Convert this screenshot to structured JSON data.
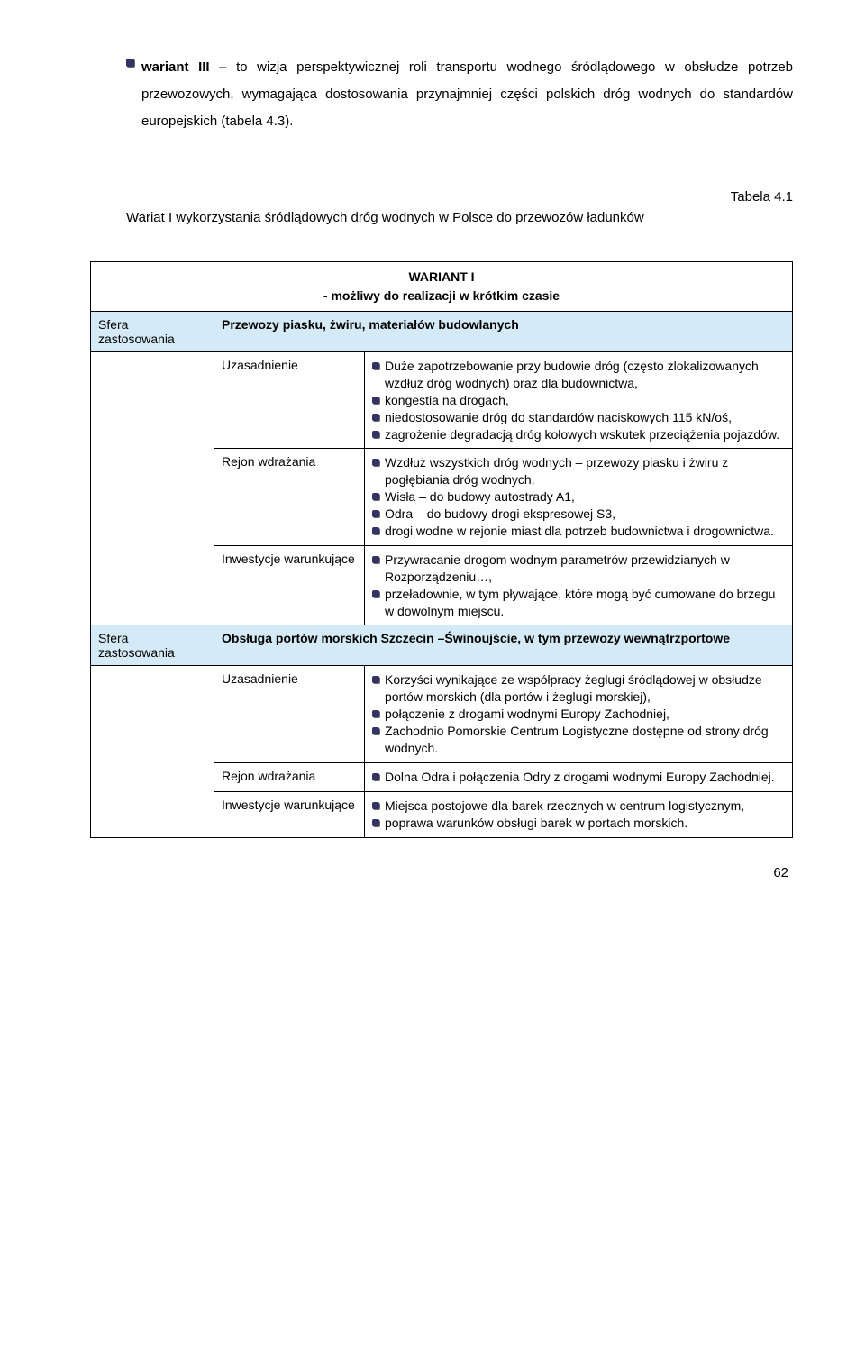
{
  "intro": {
    "text": "<b>wariant III</b> – to wizja perspektywicznej roli transportu wodnego śródlądowego w obsłudze potrzeb przewozowych, wymagająca dostosowania przynajmniej części polskich dróg wodnych do standardów europejskich (tabela 4.3)."
  },
  "tableLabel": "Tabela 4.1",
  "tableCaption": "Wariat I wykorzystania śródlądowych dróg wodnych w Polsce do przewozów ładunków",
  "header": {
    "line1": "WARIANT I",
    "line2": "- możliwy do realizacji w krótkim czasie"
  },
  "sferaLabel": "Sfera zastosowania",
  "blocks": [
    {
      "topic": "Przewozy piasku,  żwiru, materiałów budowlanych",
      "rows": [
        {
          "label": "Uzasadnienie",
          "items": [
            "Duże zapotrzebowanie przy budowie dróg (często zlokalizowanych wzdłuż dróg wodnych) oraz dla budownictwa,",
            "kongestia na drogach,",
            "niedostosowanie dróg do standardów naciskowych 115 kN/oś,",
            "zagrożenie degradacją dróg kołowych wskutek przeciążenia pojazdów."
          ]
        },
        {
          "label": "Rejon wdrażania",
          "items": [
            "Wzdłuż wszystkich dróg wodnych – przewozy piasku i żwiru z pogłębiania dróg wodnych,",
            "Wisła – do budowy autostrady A1,",
            "Odra – do budowy drogi ekspresowej S3,",
            "drogi wodne w rejonie miast dla potrzeb budownictwa i drogownictwa."
          ]
        },
        {
          "label": "Inwestycje warunkujące",
          "items": [
            "Przywracanie drogom wodnym parametrów przewidzianych w Rozporządzeniu…,",
            "przeładownie, w tym pływające, które mogą być cumowane do brzegu w dowolnym miejscu."
          ]
        }
      ]
    },
    {
      "topic": "Obsługa portów morskich Szczecin –Świnoujście, w tym przewozy wewnątrzportowe",
      "rows": [
        {
          "label": "Uzasadnienie",
          "items": [
            "Korzyści wynikające ze współpracy żeglugi śródlądowej w obsłudze portów morskich (dla portów i żeglugi morskiej),",
            "połączenie z drogami wodnymi Europy Zachodniej,",
            "Zachodnio Pomorskie Centrum Logistyczne dostępne od strony dróg wodnych."
          ]
        },
        {
          "label": "Rejon wdrażania",
          "items": [
            "Dolna Odra i połączenia Odry z drogami wodnymi Europy Zachodniej."
          ]
        },
        {
          "label": "Inwestycje warunkujące",
          "items": [
            "Miejsca postojowe dla barek rzecznych w centrum logistycznym,",
            "poprawa warunków obsługi barek w portach morskich."
          ]
        }
      ]
    }
  ],
  "pageNumber": "62",
  "styles": {
    "highlightBg": "#d4eaf6",
    "bulletColor": "#333366",
    "borderColor": "#000000",
    "fontFamily": "Arial"
  }
}
